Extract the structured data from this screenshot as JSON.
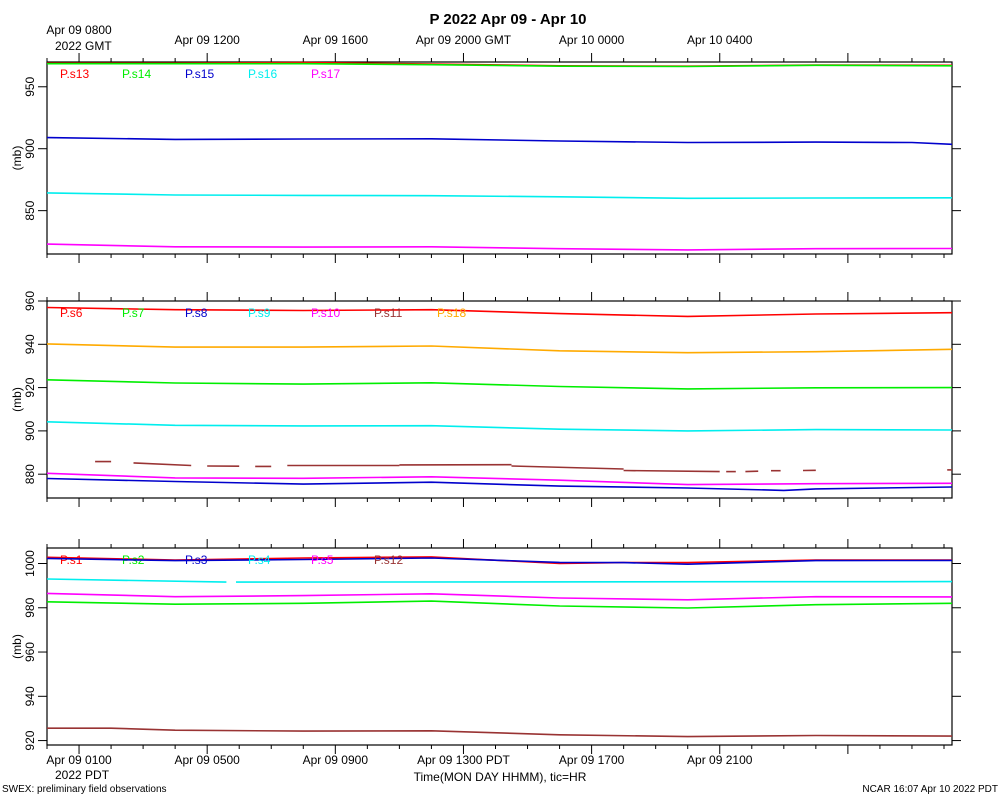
{
  "chart_data": {
    "type": "line",
    "title": "P 2022 Apr 09 - Apr 10",
    "xlabel": "Time(MON DAY HHMM), tic=HR",
    "x_unit": "hours since Apr 09 0000 PDT",
    "x_range": [
      0,
      28.25
    ],
    "top_ticks": [
      {
        "x": 1,
        "label": "Apr 09 0800"
      },
      {
        "x": 5,
        "label": "Apr 09 1200"
      },
      {
        "x": 9,
        "label": "Apr 09 1600"
      },
      {
        "x": 13,
        "label": "Apr 09 2000 GMT"
      },
      {
        "x": 17,
        "label": "Apr 10 0000"
      },
      {
        "x": 21,
        "label": "Apr 10 0400"
      }
    ],
    "top_year": "2022 GMT",
    "bottom_ticks": [
      {
        "x": 1,
        "label": "Apr 09 0100"
      },
      {
        "x": 5,
        "label": "Apr 09 0500"
      },
      {
        "x": 9,
        "label": "Apr 09 0900"
      },
      {
        "x": 13,
        "label": "Apr 09 1300 PDT"
      },
      {
        "x": 17,
        "label": "Apr 09 1700"
      },
      {
        "x": 21,
        "label": "Apr 09 2100"
      }
    ],
    "bottom_year": "2022 PDT",
    "panels": [
      {
        "ylabel": "(mb)",
        "ylim": [
          815,
          970
        ],
        "yticks": [
          850,
          900,
          950
        ],
        "series": [
          {
            "name": "P.s13",
            "color": "#ff0000",
            "x": [
              0,
              4,
              8,
              12,
              16,
              20,
              24,
              28.25
            ],
            "values": [
              969,
              969,
              969.6,
              968.4,
              966.9,
              966.6,
              967.6,
              967.3
            ]
          },
          {
            "name": "P.s14",
            "color": "#00ee00",
            "x": [
              0,
              4,
              8,
              12,
              16,
              20,
              24,
              28.25
            ],
            "values": [
              968.6,
              968.6,
              968.6,
              967.8,
              966.6,
              966.4,
              967.3,
              966.9
            ]
          },
          {
            "name": "P.s15",
            "color": "#0000cc",
            "x": [
              0,
              4,
              8,
              12,
              16,
              20,
              24,
              27,
              28.25
            ],
            "values": [
              909,
              907.5,
              907.8,
              908,
              906.2,
              905,
              905.3,
              905,
              903.6
            ]
          },
          {
            "name": "P.s16",
            "color": "#00eeee",
            "x": [
              0,
              4,
              8,
              12,
              16,
              20,
              24,
              28.25
            ],
            "values": [
              864.3,
              862.6,
              862.3,
              862.1,
              861.2,
              860,
              860.2,
              860.4
            ]
          },
          {
            "name": "P.s17",
            "color": "#ff00ff",
            "x": [
              0,
              4,
              8,
              12,
              16,
              20,
              24,
              28.25
            ],
            "values": [
              823,
              820.8,
              820.6,
              820.8,
              819.3,
              818.3,
              819.3,
              819.4
            ]
          }
        ]
      },
      {
        "ylabel": "(mb)",
        "ylim": [
          869,
          960
        ],
        "yticks": [
          880,
          900,
          920,
          940,
          960
        ],
        "series": [
          {
            "name": "P.s6",
            "color": "#ff0000",
            "x": [
              0,
              4,
              8,
              12,
              16,
              20,
              24,
              28.25
            ],
            "values": [
              957,
              956,
              955.6,
              956,
              954.2,
              952.9,
              954,
              954.6
            ]
          },
          {
            "name": "P.s7",
            "color": "#00ee00",
            "x": [
              0,
              4,
              8,
              12,
              16,
              20,
              24,
              28.25
            ],
            "values": [
              923.6,
              922.1,
              921.6,
              922.2,
              920.5,
              919.4,
              919.9,
              920
            ]
          },
          {
            "name": "P.s8",
            "color": "#0000cc",
            "x": [
              0,
              4,
              8,
              12,
              16,
              20,
              23,
              24,
              28.25
            ],
            "values": [
              878,
              876.6,
              875.4,
              876.3,
              874.5,
              873.6,
              872.5,
              873.2,
              874.1
            ]
          },
          {
            "name": "P.s9",
            "color": "#00eeee",
            "x": [
              0,
              4,
              8,
              12,
              16,
              20,
              24,
              28.25
            ],
            "values": [
              904.2,
              902.6,
              902.3,
              902.4,
              900.8,
              900,
              900.6,
              900.4
            ]
          },
          {
            "name": "P.s10",
            "color": "#ff00ff",
            "x": [
              0,
              4,
              8,
              12,
              16,
              20,
              24,
              28.25
            ],
            "values": [
              880.4,
              878.3,
              878.1,
              878.8,
              877.2,
              875.2,
              875.6,
              875.8
            ]
          },
          {
            "name": "P.s11",
            "color": "#993333",
            "segments": [
              {
                "x": [
                  1.5,
                  2
                ],
                "values": [
                  885.8,
                  885.8
                ]
              },
              {
                "x": [
                  2.7,
                  4.5
                ],
                "values": [
                  885.2,
                  884
                ]
              },
              {
                "x": [
                  5,
                  6
                ],
                "values": [
                  883.8,
                  883.7
                ]
              },
              {
                "x": [
                  6.5,
                  7
                ],
                "values": [
                  883.6,
                  883.6
                ]
              },
              {
                "x": [
                  7.5,
                  11
                ],
                "values": [
                  884,
                  884
                ]
              },
              {
                "x": [
                  11,
                  14.5
                ],
                "values": [
                  884.3,
                  884.4
                ]
              },
              {
                "x": [
                  14.5,
                  18
                ],
                "values": [
                  883.8,
                  882.4
                ]
              },
              {
                "x": [
                  18,
                  21
                ],
                "values": [
                  881.7,
                  881.2
                ]
              },
              {
                "x": [
                  21.2,
                  21.5
                ],
                "values": [
                  881.2,
                  881.2
                ]
              },
              {
                "x": [
                  21.8,
                  22.2
                ],
                "values": [
                  881.2,
                  881.4
                ]
              },
              {
                "x": [
                  22.6,
                  22.9
                ],
                "values": [
                  881.6,
                  881.6
                ]
              },
              {
                "x": [
                  23.6,
                  24
                ],
                "values": [
                  881.7,
                  881.8
                ]
              },
              {
                "x": [
                  28.1,
                  28.25
                ],
                "values": [
                  882,
                  882
                ]
              }
            ]
          },
          {
            "name": "P.s18",
            "color": "#ffaa00",
            "x": [
              0,
              4,
              8,
              12,
              16,
              20,
              24,
              28.25
            ],
            "values": [
              940.2,
              938.7,
              938.7,
              939.2,
              937,
              936.1,
              936.6,
              937.7
            ]
          }
        ]
      },
      {
        "ylabel": "(mb)",
        "ylim": [
          918,
          1007
        ],
        "yticks": [
          920,
          940,
          960,
          980,
          1000
        ],
        "series": [
          {
            "name": "P.s1",
            "color": "#ff0000",
            "x": [
              0,
              4,
              8,
              12,
              16,
              18,
              20,
              24,
              28.25
            ],
            "values": [
              1002.8,
              1001.6,
              1002.5,
              1003,
              1000,
              1000.4,
              1000.4,
              1001.6,
              1001.6
            ]
          },
          {
            "name": "P.s2",
            "color": "#00ee00",
            "x": [
              0,
              4,
              8,
              12,
              16,
              20,
              24,
              28.25
            ],
            "values": [
              982.7,
              981.6,
              982,
              983,
              980.8,
              979.9,
              981.4,
              982
            ]
          },
          {
            "name": "P.s3",
            "color": "#0000cc",
            "x": [
              0,
              4,
              8,
              12,
              16,
              18,
              20,
              24,
              28.25
            ],
            "values": [
              1002.3,
              1001.3,
              1001.8,
              1002.5,
              1000.5,
              1000.4,
              999.7,
              1001.3,
              1001.4
            ]
          },
          {
            "name": "P.s4",
            "color": "#00eeee",
            "segments": [
              {
                "x": [
                  0,
                  5.6
                ],
                "values": [
                  993,
                  991.6
                ]
              },
              {
                "x": [
                  5.9,
                  28.25
                ],
                "values": [
                  991.6,
                  991.8
                ]
              }
            ]
          },
          {
            "name": "P.s5",
            "color": "#ff00ff",
            "x": [
              0,
              4,
              8,
              12,
              16,
              20,
              24,
              28.25
            ],
            "values": [
              986.5,
              985,
              985.5,
              986.3,
              984.4,
              983.6,
              985,
              984.9
            ]
          },
          {
            "name": "P.s12",
            "color": "#993333",
            "x": [
              0,
              2,
              4,
              8,
              12,
              16,
              20,
              24,
              28.25
            ],
            "values": [
              925.6,
              925.6,
              924.7,
              924.3,
              924.4,
              922.6,
              921.8,
              922.3,
              922
            ]
          }
        ]
      }
    ]
  },
  "footer": {
    "left": "SWEX: preliminary field observations",
    "right": "NCAR 16:07 Apr 10 2022 PDT"
  }
}
